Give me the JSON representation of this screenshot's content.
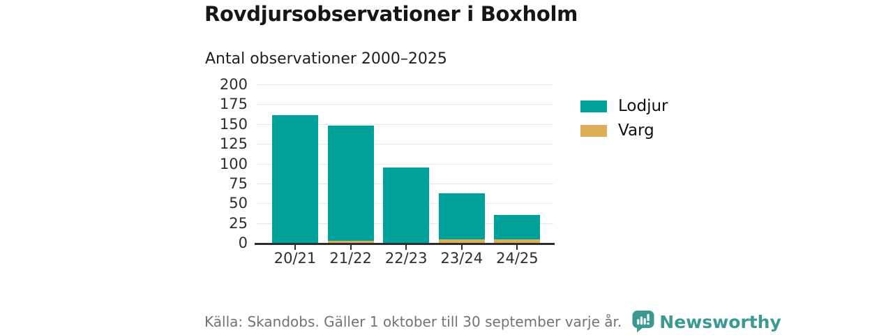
{
  "header": {
    "title": "Rovdjursobservationer i Boxholm",
    "subtitle": "Antal observationer 2000–2025"
  },
  "chart_data": {
    "type": "bar",
    "stacked": true,
    "title": "Rovdjursobservationer i Boxholm",
    "subtitle": "Antal observationer 2000–2025",
    "categories": [
      "20/21",
      "21/22",
      "22/23",
      "23/24",
      "24/25"
    ],
    "series": [
      {
        "name": "Lodjur",
        "color": "#00a19a",
        "values": [
          161,
          145,
          95,
          59,
          31
        ]
      },
      {
        "name": "Varg",
        "color": "#ddae56",
        "values": [
          0,
          3,
          0,
          4,
          4
        ]
      }
    ],
    "stack_order_bottom_to_top": [
      "Varg",
      "Lodjur"
    ],
    "stack_totals": [
      161,
      148,
      95,
      63,
      35
    ],
    "xlabel": "",
    "ylabel": "",
    "ylim": [
      0,
      200
    ],
    "yticks": [
      0,
      25,
      50,
      75,
      100,
      125,
      150,
      175,
      200
    ],
    "grid": true,
    "legend_position": "right"
  },
  "footer": {
    "source": "Källa: Skandobs. Gäller 1 oktober till 30 september varje år.",
    "brand": "Newsworthy"
  },
  "colors": {
    "lodjur": "#00a19a",
    "varg": "#ddae56",
    "brand_teal": "#3a9a92",
    "grid": "#e6e6e6",
    "axis": "#2e2e2e",
    "text_dark": "#161616",
    "text_muted": "#737373"
  }
}
